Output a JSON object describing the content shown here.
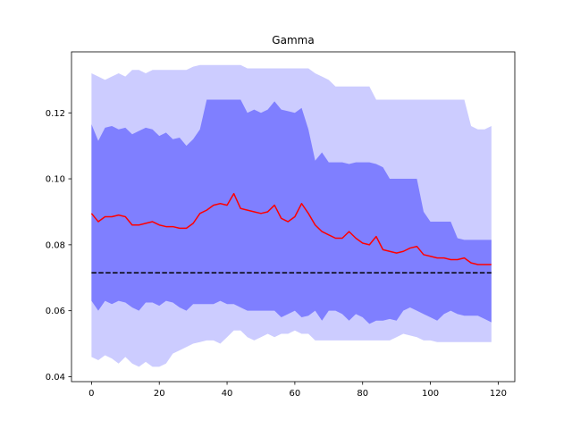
{
  "chart_data": {
    "type": "area",
    "title": "Gamma",
    "xlabel": "",
    "ylabel": "",
    "xlim": [
      -5.9,
      124.9
    ],
    "ylim": [
      0.0385,
      0.1385
    ],
    "xticks": [
      0,
      20,
      40,
      60,
      80,
      100,
      120
    ],
    "yticks": [
      0.04,
      0.06,
      0.08,
      0.1,
      0.12
    ],
    "ytick_labels": [
      "0.04",
      "0.06",
      "0.08",
      "0.10",
      "0.12"
    ],
    "grid": false,
    "legend": "none",
    "colors": {
      "outer_band": "#ccccff",
      "inner_band": "#7f7fff",
      "mean_line": "#ff0000",
      "reference_line": "#000000"
    },
    "reference_value": 0.0715,
    "x": [
      0,
      2,
      4,
      6,
      8,
      10,
      12,
      14,
      16,
      18,
      20,
      22,
      24,
      26,
      28,
      30,
      32,
      34,
      36,
      38,
      40,
      42,
      44,
      46,
      48,
      50,
      52,
      54,
      56,
      58,
      60,
      62,
      64,
      66,
      68,
      70,
      72,
      74,
      76,
      78,
      80,
      82,
      84,
      86,
      88,
      90,
      92,
      94,
      96,
      98,
      100,
      102,
      104,
      106,
      108,
      110,
      112,
      114,
      116,
      118
    ],
    "series": [
      {
        "role": "mean",
        "values": [
          0.0895,
          0.087,
          0.0885,
          0.0885,
          0.089,
          0.0885,
          0.086,
          0.086,
          0.0865,
          0.087,
          0.086,
          0.0855,
          0.0855,
          0.085,
          0.085,
          0.0865,
          0.0895,
          0.0905,
          0.092,
          0.0925,
          0.092,
          0.0955,
          0.091,
          0.0905,
          0.09,
          0.0895,
          0.09,
          0.092,
          0.088,
          0.087,
          0.0885,
          0.0925,
          0.0895,
          0.086,
          0.084,
          0.083,
          0.082,
          0.082,
          0.084,
          0.082,
          0.0805,
          0.08,
          0.0825,
          0.0785,
          0.078,
          0.0775,
          0.078,
          0.079,
          0.0795,
          0.077,
          0.0765,
          0.076,
          0.076,
          0.0755,
          0.0755,
          0.076,
          0.0745,
          0.074,
          0.074,
          0.074
        ]
      },
      {
        "role": "inner_upper",
        "values": [
          0.1165,
          0.1115,
          0.1155,
          0.116,
          0.115,
          0.1155,
          0.1135,
          0.1145,
          0.1155,
          0.115,
          0.113,
          0.114,
          0.112,
          0.1125,
          0.11,
          0.112,
          0.115,
          0.124,
          0.124,
          0.124,
          0.124,
          0.124,
          0.124,
          0.12,
          0.121,
          0.12,
          0.121,
          0.1235,
          0.121,
          0.1205,
          0.12,
          0.1215,
          0.115,
          0.1055,
          0.108,
          0.105,
          0.105,
          0.105,
          0.1045,
          0.105,
          0.105,
          0.105,
          0.1045,
          0.1035,
          0.1,
          0.1,
          0.1,
          0.1,
          0.1,
          0.09,
          0.087,
          0.087,
          0.087,
          0.087,
          0.082,
          0.0815,
          0.0815,
          0.0815,
          0.0815,
          0.0815
        ]
      },
      {
        "role": "inner_lower",
        "values": [
          0.063,
          0.06,
          0.063,
          0.062,
          0.063,
          0.0625,
          0.061,
          0.06,
          0.0625,
          0.0625,
          0.0615,
          0.063,
          0.0625,
          0.061,
          0.06,
          0.062,
          0.062,
          0.062,
          0.062,
          0.063,
          0.062,
          0.062,
          0.061,
          0.06,
          0.06,
          0.06,
          0.06,
          0.06,
          0.058,
          0.059,
          0.06,
          0.058,
          0.0585,
          0.06,
          0.057,
          0.06,
          0.06,
          0.059,
          0.057,
          0.059,
          0.058,
          0.056,
          0.057,
          0.057,
          0.0575,
          0.057,
          0.06,
          0.061,
          0.06,
          0.059,
          0.058,
          0.057,
          0.059,
          0.06,
          0.059,
          0.0585,
          0.0585,
          0.0585,
          0.0575,
          0.0565
        ]
      },
      {
        "role": "outer_upper",
        "values": [
          0.132,
          0.131,
          0.13,
          0.131,
          0.132,
          0.131,
          0.133,
          0.133,
          0.132,
          0.133,
          0.133,
          0.133,
          0.133,
          0.133,
          0.133,
          0.134,
          0.1345,
          0.1345,
          0.1345,
          0.1345,
          0.1345,
          0.1345,
          0.1345,
          0.1335,
          0.1335,
          0.1335,
          0.1335,
          0.1335,
          0.1335,
          0.1335,
          0.1335,
          0.1335,
          0.1335,
          0.132,
          0.131,
          0.13,
          0.128,
          0.128,
          0.128,
          0.128,
          0.128,
          0.128,
          0.124,
          0.124,
          0.124,
          0.124,
          0.124,
          0.124,
          0.124,
          0.124,
          0.124,
          0.124,
          0.124,
          0.124,
          0.124,
          0.124,
          0.116,
          0.115,
          0.115,
          0.116
        ]
      },
      {
        "role": "outer_lower",
        "values": [
          0.046,
          0.045,
          0.0465,
          0.0455,
          0.044,
          0.046,
          0.044,
          0.043,
          0.0445,
          0.043,
          0.043,
          0.044,
          0.047,
          0.048,
          0.049,
          0.05,
          0.0505,
          0.051,
          0.051,
          0.05,
          0.052,
          0.054,
          0.054,
          0.052,
          0.051,
          0.052,
          0.053,
          0.052,
          0.053,
          0.053,
          0.054,
          0.053,
          0.053,
          0.051,
          0.051,
          0.051,
          0.051,
          0.051,
          0.051,
          0.051,
          0.051,
          0.051,
          0.051,
          0.051,
          0.051,
          0.052,
          0.053,
          0.0525,
          0.052,
          0.051,
          0.051,
          0.0505,
          0.0505,
          0.0505,
          0.0505,
          0.0505,
          0.0505,
          0.0505,
          0.0505,
          0.0505
        ]
      }
    ]
  }
}
